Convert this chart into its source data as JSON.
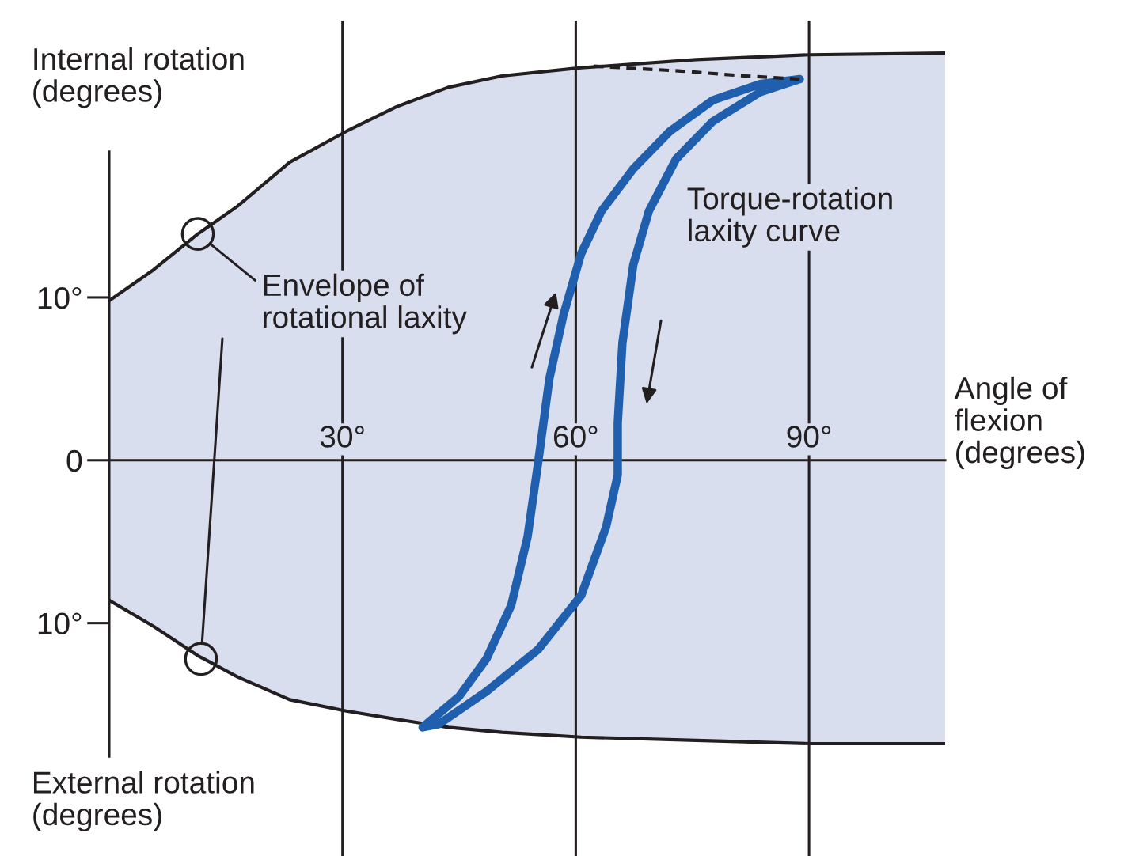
{
  "chart_data": {
    "type": "line",
    "xlabel": "Angle of\nflexion\n(degrees)",
    "ylabel": "Internal rotation\n(degrees)",
    "annotations": [
      "External rotation\n(degrees)",
      "Torque-rotation\nlaxity curve"
    ],
    "xlim": [
      0,
      107.5
    ],
    "ylim": [
      -24.3,
      27.0
    ],
    "xticks": [
      {
        "value": 30,
        "label": "30°"
      },
      {
        "value": 60,
        "label": "60°"
      },
      {
        "value": 90,
        "label": "90°"
      }
    ],
    "yticks": [
      {
        "value": -10,
        "label": "10°"
      },
      0,
      {
        "value": 10,
        "label": "10°"
      }
    ],
    "grid": "x",
    "series": [
      {
        "type": "area",
        "color": "#d8deee",
        "x": [
          0,
          5.7,
          11.4,
          16.5,
          23.2,
          30.5,
          36.9,
          43.6,
          50.5,
          60.7,
          75.5,
          90,
          107.5
        ],
        "values": [
          9.8,
          11.7,
          13.9,
          15.6,
          18.3,
          20.2,
          21.7,
          22.9,
          23.6,
          24.1,
          24.6,
          24.9,
          25.0
        ]
      },
      {
        "type": "area",
        "color": "#d8deee",
        "x": [
          0,
          5.7,
          11.4,
          16.5,
          23.2,
          30.5,
          36.9,
          43.6,
          50.5,
          60.7,
          75.5,
          90,
          107.5
        ],
        "values": [
          -8.6,
          -10.2,
          -12.0,
          -13.3,
          -14.7,
          -15.4,
          -15.9,
          -16.4,
          -16.7,
          -17.0,
          -17.2,
          -17.4,
          -17.4
        ]
      },
      {
        "line_style": "dashed",
        "color": "#231f20",
        "x": [
          62.3,
          73.5,
          81.7,
          88.8
        ],
        "values": [
          24.2,
          23.9,
          23.6,
          23.4
        ]
      },
      {
        "type": "scatter",
        "name": "Envelope of\nrotational laxity",
        "color": "#231f20",
        "marker": "circle",
        "x": [
          11.4,
          11.8
        ],
        "values": [
          13.9,
          -12.2
        ]
      }
    ]
  }
}
